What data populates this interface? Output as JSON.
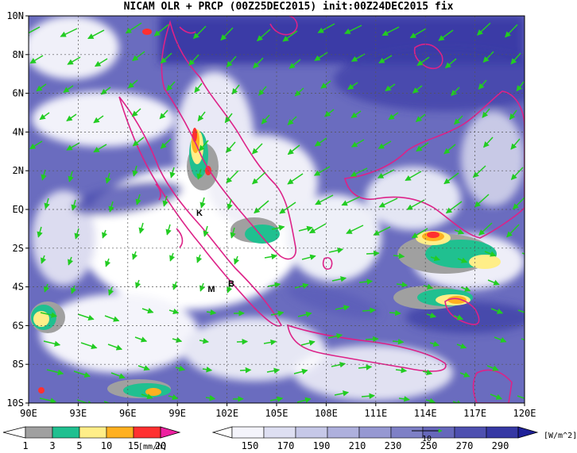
{
  "title": "NICAM OLR + PRCP (00Z25DEC2015) init:00Z24DEC2015 fix",
  "map": {
    "lon_labels": [
      "90E",
      "93E",
      "96E",
      "99E",
      "102E",
      "105E",
      "108E",
      "111E",
      "114E",
      "117E",
      "120E"
    ],
    "lat_labels": [
      "10N",
      "8N",
      "6N",
      "4N",
      "2N",
      "EQ",
      "2S",
      "4S",
      "6S",
      "8S",
      "10S"
    ],
    "place_markers": [
      "K",
      "M",
      "B"
    ],
    "land_color": "#dd2288",
    "wind_color": "#22cc22"
  },
  "prcp_legend": {
    "unit": "[mm/h]",
    "ticks": [
      "1",
      "3",
      "5",
      "10",
      "15",
      "20"
    ],
    "colors": [
      "#a0a0a0",
      "#20c090",
      "#ffee88",
      "#ffb020",
      "#ff3030",
      "#ee20a0"
    ]
  },
  "olr_legend": {
    "unit": "[W/m^2]",
    "ticks": [
      "150",
      "170",
      "190",
      "210",
      "230",
      "250",
      "270",
      "290"
    ],
    "colors": [
      "#f4f4fb",
      "#dedff2",
      "#c6c8e8",
      "#aeb0dd",
      "#9698d2",
      "#7e80c6",
      "#6668bb",
      "#4e50b0",
      "#3638a4",
      "#1e2098"
    ],
    "vector_ref": "10"
  }
}
